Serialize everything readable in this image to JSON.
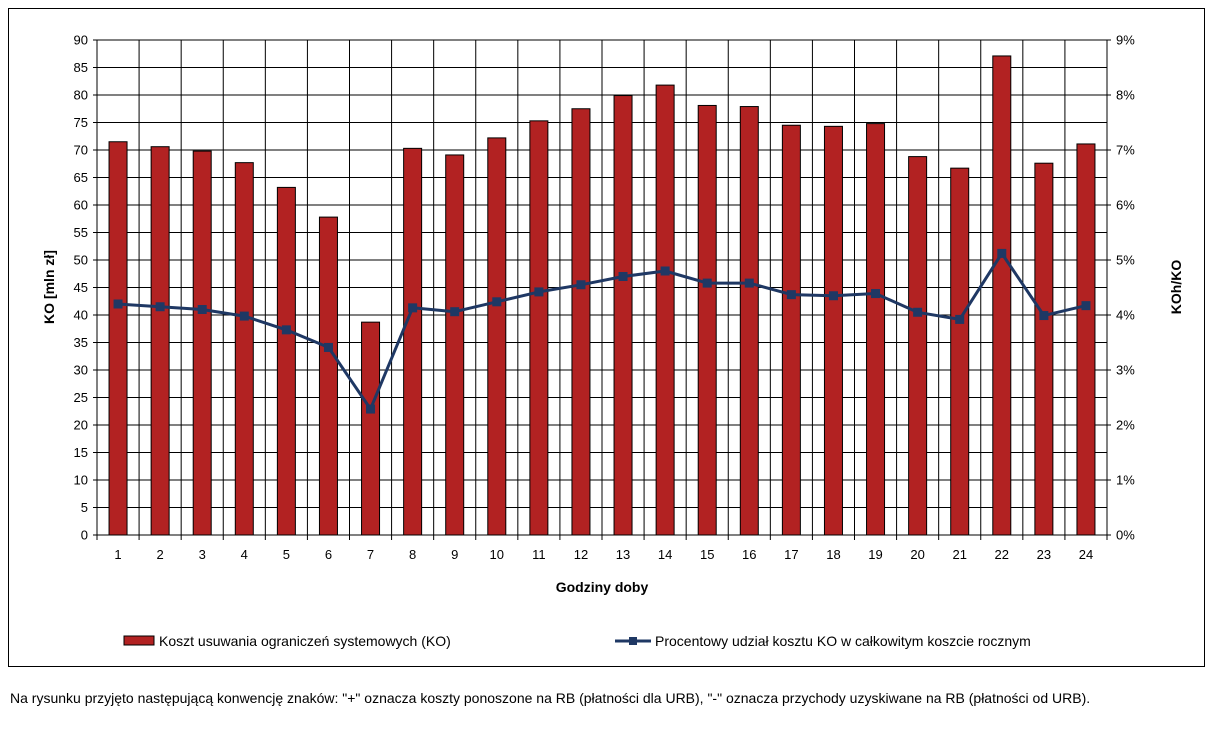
{
  "chart_data": {
    "type": "bar",
    "xlabel": "Godziny doby",
    "ylabel": "KO [mln zł]",
    "y2label": "KOh/KO",
    "categories": [
      "1",
      "2",
      "3",
      "4",
      "5",
      "6",
      "7",
      "8",
      "9",
      "10",
      "11",
      "12",
      "13",
      "14",
      "15",
      "16",
      "17",
      "18",
      "19",
      "20",
      "21",
      "22",
      "23",
      "24"
    ],
    "ylim": [
      0,
      90
    ],
    "y_ticks": [
      "0",
      "5",
      "10",
      "15",
      "20",
      "25",
      "30",
      "35",
      "40",
      "45",
      "50",
      "55",
      "60",
      "65",
      "70",
      "75",
      "80",
      "85",
      "90"
    ],
    "y2lim": [
      0,
      0.09
    ],
    "y2_ticks": [
      "0%",
      "1%",
      "2%",
      "3%",
      "4%",
      "5%",
      "6%",
      "7%",
      "8%",
      "9%"
    ],
    "grid": true,
    "legend_position": "bottom",
    "series": [
      {
        "name": "Koszt usuwania ograniczeń systemowych (KO)",
        "type": "bar",
        "axis": "left",
        "color": "#b22222",
        "values": [
          71.5,
          70.6,
          69.8,
          67.7,
          63.2,
          57.8,
          38.7,
          70.3,
          69.1,
          72.2,
          75.3,
          77.5,
          79.9,
          81.8,
          78.1,
          77.9,
          74.5,
          74.3,
          74.8,
          68.8,
          66.7,
          87.1,
          67.6,
          71.1
        ]
      },
      {
        "name": "Procentowy udział kosztu KO w całkowitym koszcie rocznym",
        "type": "line",
        "axis": "right",
        "color": "#1f3864",
        "values": [
          0.042,
          0.0415,
          0.041,
          0.0398,
          0.0373,
          0.0341,
          0.0229,
          0.0413,
          0.0406,
          0.0424,
          0.0442,
          0.0455,
          0.047,
          0.048,
          0.0458,
          0.0458,
          0.0437,
          0.0435,
          0.0439,
          0.0405,
          0.0392,
          0.0512,
          0.0399,
          0.0417
        ]
      }
    ]
  },
  "footnote": "Na rysunku przyjęto następującą konwencję znaków: \"+\" oznacza koszty ponoszone na RB (płatności dla URB), \"-\" oznacza przychody uzyskiwane na RB (płatności od URB)."
}
